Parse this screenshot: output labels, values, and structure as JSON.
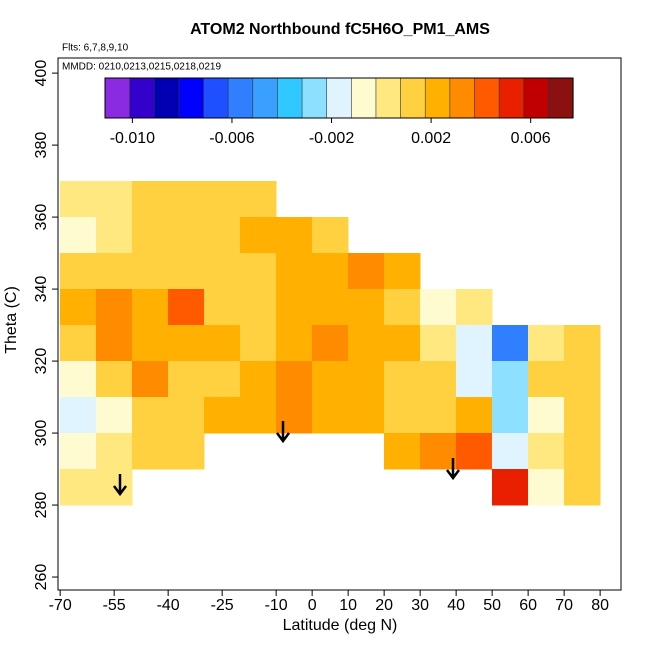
{
  "chart_data": {
    "type": "heatmap",
    "title": "ATOM2 Northbound fC5H6O_PM1_AMS",
    "subtitle": "Flts: 6,7,8,9,10",
    "annotation": "MMDD: 0210,0213,0215,0218,0219",
    "x_label": "Latitude (deg N)",
    "y_label": "Theta (C)",
    "xlim": [
      -70.6,
      85.8
    ],
    "ylim": [
      256.4,
      404.2
    ],
    "xticks": [
      -70,
      -55,
      -40,
      -25,
      -10,
      0,
      10,
      20,
      30,
      40,
      50,
      60,
      70,
      80
    ],
    "yticks": [
      260,
      280,
      300,
      320,
      340,
      360,
      380,
      400
    ],
    "x": [
      -65,
      -55,
      -45,
      -35,
      -25,
      -15,
      -5,
      5,
      15,
      25,
      35,
      45,
      55,
      65,
      75
    ],
    "y": [
      365,
      355,
      345,
      335,
      325,
      315,
      305,
      295,
      285
    ],
    "z": [
      [
        0.0,
        0.0005,
        0.001,
        0.0015,
        0.0015,
        0.0015,
        null,
        null,
        null,
        null,
        null,
        null,
        null,
        null,
        null
      ],
      [
        -0.0005,
        0.0005,
        0.0015,
        0.0015,
        0.0015,
        0.002,
        0.002,
        0.0015,
        null,
        null,
        null,
        null,
        null,
        null,
        null
      ],
      [
        0.001,
        0.001,
        0.001,
        0.0015,
        0.001,
        0.001,
        0.002,
        0.0025,
        0.003,
        0.002,
        null,
        null,
        null,
        null,
        null
      ],
      [
        0.002,
        0.003,
        0.0025,
        0.004,
        0.0015,
        0.001,
        0.002,
        0.002,
        0.002,
        0.0015,
        -0.0005,
        0.0005,
        null,
        null,
        null
      ],
      [
        0.0015,
        0.0035,
        0.002,
        0.002,
        0.002,
        0.0015,
        0.0025,
        0.003,
        0.002,
        0.002,
        0.0005,
        -0.002,
        -0.006,
        0.0,
        0.001
      ],
      [
        -0.001,
        0.001,
        0.003,
        0.0015,
        0.0015,
        0.0025,
        0.003,
        0.002,
        0.002,
        0.0015,
        0.001,
        -0.002,
        -0.003,
        0.001,
        0.001
      ],
      [
        -0.002,
        -0.0005,
        0.001,
        0.0015,
        0.002,
        0.0025,
        0.003,
        0.0025,
        0.002,
        0.0015,
        0.001,
        0.002,
        -0.003,
        -0.001,
        0.001
      ],
      [
        -0.001,
        0.0,
        0.001,
        0.0015,
        null,
        null,
        null,
        null,
        null,
        0.002,
        0.003,
        0.004,
        -0.002,
        0.0005,
        0.001
      ],
      [
        0.0,
        0.0005,
        null,
        null,
        null,
        null,
        null,
        null,
        null,
        null,
        null,
        null,
        0.005,
        -0.001,
        0.001
      ]
    ],
    "colorbar": {
      "lim": [
        -0.0111,
        0.0077
      ],
      "ticks": [
        {
          "value": -0.01,
          "label": "-0.010"
        },
        {
          "value": -0.006,
          "label": "-0.006"
        },
        {
          "value": -0.002,
          "label": "-0.002"
        },
        {
          "value": 0.002,
          "label": "0.002"
        },
        {
          "value": 0.006,
          "label": "0.006"
        }
      ],
      "colors": [
        "#8a2be2",
        "#3300cc",
        "#0000b3",
        "#0000ff",
        "#1e50ff",
        "#2f7fff",
        "#3aa0ff",
        "#30c8ff",
        "#8de0ff",
        "#e0f4ff",
        "#fffbd0",
        "#ffe880",
        "#ffd040",
        "#ffb000",
        "#ff8c00",
        "#ff5a00",
        "#e82000",
        "#c00000",
        "#8b1010"
      ]
    }
  }
}
